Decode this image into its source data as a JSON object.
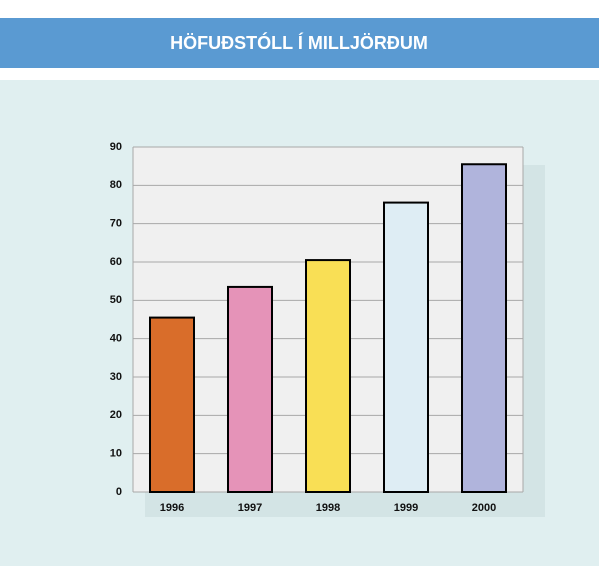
{
  "chart_data": {
    "type": "bar",
    "title": "HÖFUÐSTÓLL Í MILLJÖRÐUM",
    "categories": [
      "1996",
      "1997",
      "1998",
      "1999",
      "2000"
    ],
    "values": [
      45.5,
      53.5,
      60.5,
      75.5,
      85.5
    ],
    "colors": [
      "#d96d2a",
      "#e593b8",
      "#f9df55",
      "#deedf4",
      "#b0b4dc"
    ],
    "ylim": [
      0,
      90
    ],
    "yticks": [
      0,
      10,
      20,
      30,
      40,
      50,
      60,
      70,
      80,
      90
    ],
    "grid": true
  }
}
